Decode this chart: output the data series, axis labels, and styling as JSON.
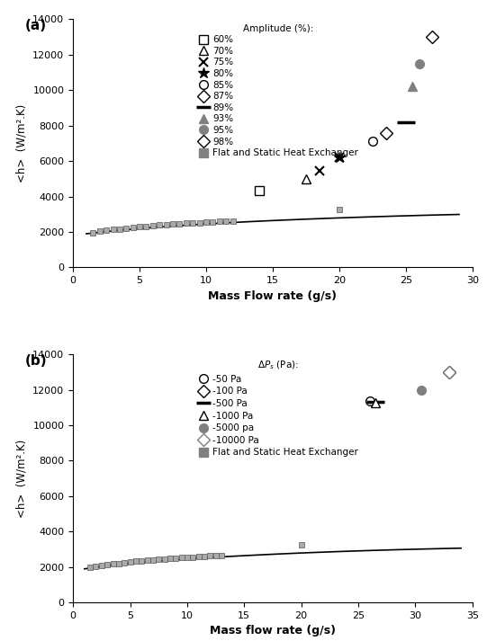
{
  "panel_a": {
    "title_label": "(a)",
    "xlabel": "Mass Flow rate (g/s)",
    "ylabel": "<h>  (W/m².K)",
    "xlim": [
      0,
      30
    ],
    "ylim": [
      0,
      14000
    ],
    "xticks": [
      0,
      5,
      10,
      15,
      20,
      25,
      30
    ],
    "yticks": [
      0,
      2000,
      4000,
      6000,
      8000,
      10000,
      12000,
      14000
    ],
    "flat_static_x": [
      1.5,
      2.0,
      2.5,
      3.0,
      3.5,
      4.0,
      4.5,
      5.0,
      5.5,
      6.0,
      6.5,
      7.0,
      7.5,
      8.0,
      8.5,
      9.0,
      9.5,
      10.0,
      10.5,
      11.0,
      11.5,
      12.0,
      20.0
    ],
    "flat_static_y": [
      1970,
      2030,
      2080,
      2130,
      2175,
      2215,
      2255,
      2290,
      2325,
      2355,
      2385,
      2415,
      2440,
      2465,
      2490,
      2510,
      2530,
      2550,
      2570,
      2590,
      2610,
      2625,
      3280
    ],
    "curve_x": [
      1.0,
      2.0,
      3.0,
      4.0,
      5.0,
      6.0,
      7.0,
      8.0,
      9.0,
      10.0,
      11.0,
      12.0,
      13.0,
      14.0,
      15.0,
      16.0,
      17.0,
      18.0,
      19.0,
      20.0,
      21.0,
      22.0,
      23.0,
      24.0,
      25.0,
      26.0,
      27.0,
      28.0,
      29.0
    ],
    "curve_y": [
      1900,
      1980,
      2060,
      2130,
      2195,
      2255,
      2310,
      2360,
      2408,
      2453,
      2495,
      2535,
      2573,
      2610,
      2644,
      2677,
      2708,
      2738,
      2767,
      2795,
      2820,
      2845,
      2869,
      2892,
      2913,
      2934,
      2954,
      2973,
      2990
    ],
    "series": [
      {
        "label": "60%",
        "marker": "s",
        "x": [
          14.0
        ],
        "y": [
          4350
        ],
        "color": "black",
        "facecolor": "white"
      },
      {
        "label": "70%",
        "marker": "^",
        "x": [
          17.5
        ],
        "y": [
          5000
        ],
        "color": "black",
        "facecolor": "white"
      },
      {
        "label": "75%",
        "marker": "x",
        "x": [
          18.5,
          20.0
        ],
        "y": [
          5450,
          6200
        ],
        "color": "black",
        "facecolor": "black"
      },
      {
        "label": "80%",
        "marker": "x2",
        "x": [
          20.0
        ],
        "y": [
          6200
        ],
        "color": "black",
        "facecolor": "black"
      },
      {
        "label": "85%",
        "marker": "o",
        "x": [
          22.5
        ],
        "y": [
          7100
        ],
        "color": "black",
        "facecolor": "white"
      },
      {
        "label": "87%",
        "marker": "D",
        "x": [
          23.5
        ],
        "y": [
          7600
        ],
        "color": "black",
        "facecolor": "white"
      },
      {
        "label": "89%",
        "marker": "dash",
        "x": [
          25.0
        ],
        "y": [
          8200
        ],
        "color": "black",
        "facecolor": "black"
      },
      {
        "label": "93%",
        "marker": "^",
        "x": [
          25.5
        ],
        "y": [
          10200
        ],
        "color": "gray",
        "facecolor": "gray"
      },
      {
        "label": "95%",
        "marker": "o",
        "x": [
          26.0
        ],
        "y": [
          11500
        ],
        "color": "gray",
        "facecolor": "gray"
      },
      {
        "label": "98%",
        "marker": "D",
        "x": [
          27.0
        ],
        "y": [
          13000
        ],
        "color": "black",
        "facecolor": "white"
      }
    ],
    "legend_title": "Amplitude (%):",
    "legend_entries": [
      {
        "label": "60%",
        "marker": "s",
        "color": "black",
        "facecolor": "white"
      },
      {
        "label": "70%",
        "marker": "^",
        "color": "black",
        "facecolor": "white"
      },
      {
        "label": "75%",
        "marker": "x",
        "color": "black",
        "facecolor": "black"
      },
      {
        "label": "80%",
        "marker": "x2",
        "color": "black",
        "facecolor": "black"
      },
      {
        "label": "85%",
        "marker": "o",
        "color": "black",
        "facecolor": "white"
      },
      {
        "label": "87%",
        "marker": "D",
        "color": "black",
        "facecolor": "white"
      },
      {
        "label": "89%",
        "marker": "dash",
        "color": "black",
        "facecolor": "black"
      },
      {
        "label": "93%",
        "marker": "^",
        "color": "gray",
        "facecolor": "gray"
      },
      {
        "label": "95%",
        "marker": "o",
        "color": "gray",
        "facecolor": "gray"
      },
      {
        "label": "98%",
        "marker": "D",
        "color": "black",
        "facecolor": "white"
      },
      {
        "label": "Flat and Static Heat Exchanger",
        "marker": "s",
        "color": "gray",
        "facecolor": "gray"
      }
    ]
  },
  "panel_b": {
    "title_label": "(b)",
    "xlabel": "Mass flow rate (g/s)",
    "ylabel": "<h>  (W/m².K)",
    "xlim": [
      0,
      35
    ],
    "ylim": [
      0,
      14000
    ],
    "xticks": [
      0,
      5,
      10,
      15,
      20,
      25,
      30,
      35
    ],
    "yticks": [
      0,
      2000,
      4000,
      6000,
      8000,
      10000,
      12000,
      14000
    ],
    "flat_static_x": [
      1.5,
      2.0,
      2.5,
      3.0,
      3.5,
      4.0,
      4.5,
      5.0,
      5.5,
      6.0,
      6.5,
      7.0,
      7.5,
      8.0,
      8.5,
      9.0,
      9.5,
      10.0,
      10.5,
      11.0,
      11.5,
      12.0,
      12.5,
      13.0,
      20.0
    ],
    "flat_static_y": [
      1970,
      2030,
      2080,
      2130,
      2175,
      2215,
      2255,
      2290,
      2325,
      2355,
      2385,
      2415,
      2440,
      2465,
      2490,
      2510,
      2530,
      2550,
      2570,
      2590,
      2610,
      2625,
      2645,
      2660,
      3280
    ],
    "curve_x": [
      1.0,
      2.0,
      3.0,
      4.0,
      5.0,
      6.0,
      7.0,
      8.0,
      9.0,
      10.0,
      11.0,
      12.0,
      13.0,
      14.0,
      15.0,
      16.0,
      17.0,
      18.0,
      19.0,
      20.0,
      21.0,
      22.0,
      23.0,
      24.0,
      25.0,
      26.0,
      27.0,
      28.0,
      29.0,
      30.0,
      31.0,
      32.0,
      33.0,
      34.0
    ],
    "curve_y": [
      1900,
      1980,
      2060,
      2130,
      2195,
      2255,
      2310,
      2360,
      2408,
      2453,
      2495,
      2535,
      2573,
      2610,
      2644,
      2677,
      2708,
      2738,
      2767,
      2795,
      2820,
      2845,
      2869,
      2892,
      2913,
      2934,
      2954,
      2973,
      2990,
      3007,
      3023,
      3038,
      3053,
      3067
    ],
    "series": [
      {
        "label": "-50 Pa",
        "marker": "o",
        "x": [
          26.0
        ],
        "y": [
          11350
        ],
        "color": "black",
        "facecolor": "white"
      },
      {
        "label": "-100 Pa",
        "marker": "D",
        "x": [
          33.0
        ],
        "y": [
          13000
        ],
        "color": "black",
        "facecolor": "white"
      },
      {
        "label": "-500 Pa",
        "marker": "dash",
        "x": [
          26.5
        ],
        "y": [
          11300
        ],
        "color": "black",
        "facecolor": "black"
      },
      {
        "label": "-1000 Pa",
        "marker": "^",
        "x": [
          26.5
        ],
        "y": [
          11250
        ],
        "color": "black",
        "facecolor": "white"
      },
      {
        "label": "-5000 pa",
        "marker": "o",
        "x": [
          30.5
        ],
        "y": [
          12000
        ],
        "color": "gray",
        "facecolor": "gray"
      },
      {
        "label": "-10000 Pa",
        "marker": "D",
        "x": [
          33.0
        ],
        "y": [
          13000
        ],
        "color": "gray",
        "facecolor": "white"
      }
    ],
    "legend_title": "ΔPₛ (Pa):",
    "legend_entries": [
      {
        "label": "-50 Pa",
        "marker": "o",
        "color": "black",
        "facecolor": "white"
      },
      {
        "label": "-100 Pa",
        "marker": "D",
        "color": "black",
        "facecolor": "white"
      },
      {
        "label": "-500 Pa",
        "marker": "dash",
        "color": "black",
        "facecolor": "black"
      },
      {
        "label": "-1000 Pa",
        "marker": "^",
        "color": "black",
        "facecolor": "white"
      },
      {
        "label": "-5000 pa",
        "marker": "o",
        "color": "gray",
        "facecolor": "gray"
      },
      {
        "label": "-10000 Pa",
        "marker": "D",
        "color": "gray",
        "facecolor": "white"
      },
      {
        "label": "Flat and Static Heat Exchanger",
        "marker": "s",
        "color": "gray",
        "facecolor": "gray"
      }
    ]
  }
}
